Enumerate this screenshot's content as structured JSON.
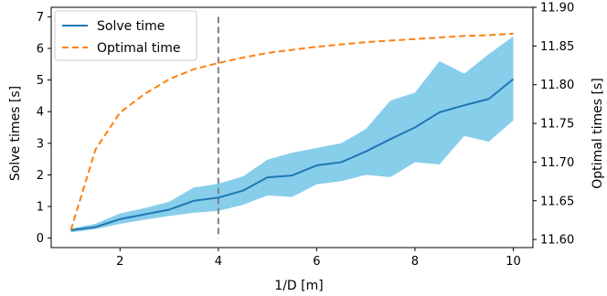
{
  "chart_data": {
    "type": "line",
    "xlabel": "1/D [m]",
    "ylabel_left": "Solve times [s]",
    "ylabel_right": "Optimal times [s]",
    "xlim": [
      0.6,
      10.4
    ],
    "ylim_left": [
      -0.3,
      7.3
    ],
    "ylim_right": [
      11.5895,
      11.9
    ],
    "x_ticks": [
      2,
      4,
      6,
      8,
      10
    ],
    "y_left_ticks": [
      0,
      1,
      2,
      3,
      4,
      5,
      6,
      7
    ],
    "y_right_ticks": [
      11.6,
      11.65,
      11.7,
      11.75,
      11.8,
      11.85,
      11.9
    ],
    "y_right_tick_labels": [
      "11.60",
      "11.65",
      "11.70",
      "11.75",
      "11.80",
      "11.85",
      "11.90"
    ],
    "x": [
      1.0,
      1.5,
      2.0,
      2.5,
      3.0,
      3.5,
      4.0,
      4.5,
      5.0,
      5.5,
      6.0,
      6.5,
      7.0,
      7.5,
      8.0,
      8.5,
      9.0,
      9.5,
      10.0
    ],
    "series": [
      {
        "name": "Solve time",
        "axis": "left",
        "color": "#1f77b4",
        "style": "solid",
        "values": [
          0.25,
          0.35,
          0.6,
          0.75,
          0.9,
          1.18,
          1.28,
          1.5,
          1.92,
          1.98,
          2.3,
          2.4,
          2.74,
          3.13,
          3.5,
          3.98,
          4.2,
          4.4,
          5.03
        ]
      },
      {
        "name": "Optimal time",
        "axis": "right",
        "color": "#ff7f0e",
        "style": "dashed",
        "values": [
          11.612,
          11.716,
          11.764,
          11.788,
          11.807,
          11.82,
          11.828,
          11.835,
          11.841,
          11.845,
          11.849,
          11.852,
          11.855,
          11.857,
          11.859,
          11.861,
          11.863,
          11.864,
          11.866
        ]
      }
    ],
    "band": {
      "color": "#87ceeb",
      "lower": [
        0.18,
        0.28,
        0.45,
        0.58,
        0.7,
        0.8,
        0.86,
        1.05,
        1.35,
        1.3,
        1.7,
        1.8,
        2.0,
        1.93,
        2.4,
        2.33,
        3.23,
        3.05,
        3.72
      ],
      "upper": [
        0.3,
        0.45,
        0.78,
        0.95,
        1.15,
        1.6,
        1.72,
        1.95,
        2.48,
        2.7,
        2.85,
        3.0,
        3.45,
        4.35,
        4.6,
        5.6,
        5.2,
        5.82,
        6.38
      ]
    },
    "vline": {
      "x": 4,
      "color": "#808080",
      "style": "dashed"
    },
    "legend_position": "top-left",
    "grid": false
  }
}
